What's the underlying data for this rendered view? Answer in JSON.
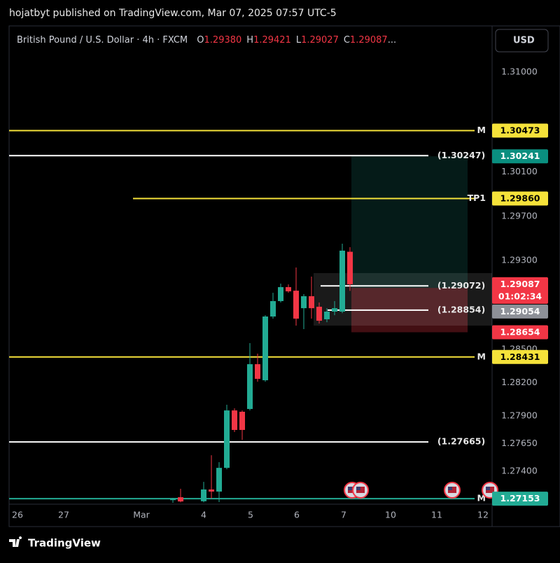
{
  "header": {
    "publisher": "hojatbyt published on TradingView.com, Mar 07, 2025 07:57 UTC-5",
    "brand": "TradingView"
  },
  "chart_data": {
    "type": "candlestick",
    "title": "British Pound / U.S. Dollar · 4h · FXCM",
    "currency": "USD",
    "ohlc_legend": {
      "labels": [
        "O",
        "H",
        "L",
        "C"
      ],
      "values": [
        1.2938,
        1.29421,
        1.29027,
        1.29087
      ],
      "value_labels": [
        "1.29380",
        "1.29421",
        "1.29027",
        "1.29087"
      ],
      "ellipsis": "..."
    },
    "up_color": "#22ab94",
    "down_color": "#f23645",
    "candles": [
      {
        "o": 1.2714,
        "h": 1.2716,
        "l": 1.27116,
        "c": 1.2715
      },
      {
        "o": 1.27166,
        "h": 1.27242,
        "l": 1.2712,
        "c": 1.27128
      },
      {
        "o": 1.2713,
        "h": 1.27305,
        "l": 1.2712,
        "c": 1.27236
      },
      {
        "o": 1.27236,
        "h": 1.27545,
        "l": 1.27154,
        "c": 1.27217
      },
      {
        "o": 1.27217,
        "h": 1.27482,
        "l": 1.27122,
        "c": 1.27431
      },
      {
        "o": 1.27431,
        "h": 1.28,
        "l": 1.27418,
        "c": 1.27949
      },
      {
        "o": 1.27949,
        "h": 1.27968,
        "l": 1.27754,
        "c": 1.27773
      },
      {
        "o": 1.27937,
        "h": 1.27949,
        "l": 1.27684,
        "c": 1.27773
      },
      {
        "o": 1.27962,
        "h": 1.28556,
        "l": 1.27949,
        "c": 1.28366
      },
      {
        "o": 1.28366,
        "h": 1.28461,
        "l": 1.28208,
        "c": 1.28234
      },
      {
        "o": 1.28221,
        "h": 1.28808,
        "l": 1.28208,
        "c": 1.28796
      },
      {
        "o": 1.28796,
        "h": 1.2901,
        "l": 1.28777,
        "c": 1.28935
      },
      {
        "o": 1.28935,
        "h": 1.29093,
        "l": 1.28922,
        "c": 1.29061
      },
      {
        "o": 1.29061,
        "h": 1.29086,
        "l": 1.2901,
        "c": 1.29023
      },
      {
        "o": 1.29029,
        "h": 1.29238,
        "l": 1.28714,
        "c": 1.28777
      },
      {
        "o": 1.28871,
        "h": 1.28998,
        "l": 1.28682,
        "c": 1.28979
      },
      {
        "o": 1.28979,
        "h": 1.29156,
        "l": 1.28777,
        "c": 1.28871
      },
      {
        "o": 1.28884,
        "h": 1.28922,
        "l": 1.28733,
        "c": 1.28758
      },
      {
        "o": 1.28771,
        "h": 1.28871,
        "l": 1.28745,
        "c": 1.2884
      },
      {
        "o": 1.2884,
        "h": 1.28935,
        "l": 1.28808,
        "c": 1.28871
      },
      {
        "o": 1.2884,
        "h": 1.29453,
        "l": 1.28827,
        "c": 1.2939
      },
      {
        "o": 1.2938,
        "h": 1.29421,
        "l": 1.29027,
        "c": 1.29087
      }
    ],
    "ylim": [
      1.27116,
      1.31417
    ],
    "yticks": [
      {
        "value": 1.31,
        "label": "1.31000"
      },
      {
        "value": 1.301,
        "label": "1.30100"
      },
      {
        "value": 1.297,
        "label": "1.29700"
      },
      {
        "value": 1.293,
        "label": "1.29300"
      },
      {
        "value": 1.285,
        "label": "1.28500"
      },
      {
        "value": 1.282,
        "label": "1.28200"
      },
      {
        "value": 1.279,
        "label": "1.27900"
      },
      {
        "value": 1.2765,
        "label": "1.27650"
      },
      {
        "value": 1.274,
        "label": "1.27400"
      }
    ],
    "x_labels": [
      "26",
      "27",
      "Mar",
      "4",
      "5",
      "6",
      "7",
      "10",
      "11",
      "12"
    ],
    "levels": [
      {
        "value": 1.30473,
        "label": "M",
        "tag": "1.30473",
        "color": "#f5e23a"
      },
      {
        "value": 1.30247,
        "label": "(1.30247)",
        "color": "#ffffff"
      },
      {
        "value": 1.2986,
        "label": "TP1",
        "tag": "1.29860",
        "color": "#f5e23a"
      },
      {
        "value": 1.29072,
        "label": "(1.29072)",
        "color": "#ffffff"
      },
      {
        "value": 1.28854,
        "label": "(1.28854)",
        "color": "#ffffff"
      },
      {
        "value": 1.28431,
        "label": "M",
        "tag": "1.28431",
        "color": "#f5e23a"
      },
      {
        "value": 1.27665,
        "label": "(1.27665)",
        "color": "#ffffff"
      },
      {
        "value": 1.27153,
        "label": "M",
        "tag": "1.27153",
        "color": "#22ab94"
      }
    ],
    "position": {
      "target": {
        "value": 1.30241,
        "label": "1.30241",
        "color": "#0a8f80"
      },
      "entry": {
        "value": 1.29054,
        "label": "1.29054",
        "color": "#8d9097"
      },
      "stop": {
        "value": 1.28654,
        "label": "1.28654",
        "color": "#f23645"
      }
    },
    "last_price": {
      "value": 1.29087,
      "label": "1.29087",
      "countdown": "01:02:34",
      "color": "#f23645"
    }
  }
}
